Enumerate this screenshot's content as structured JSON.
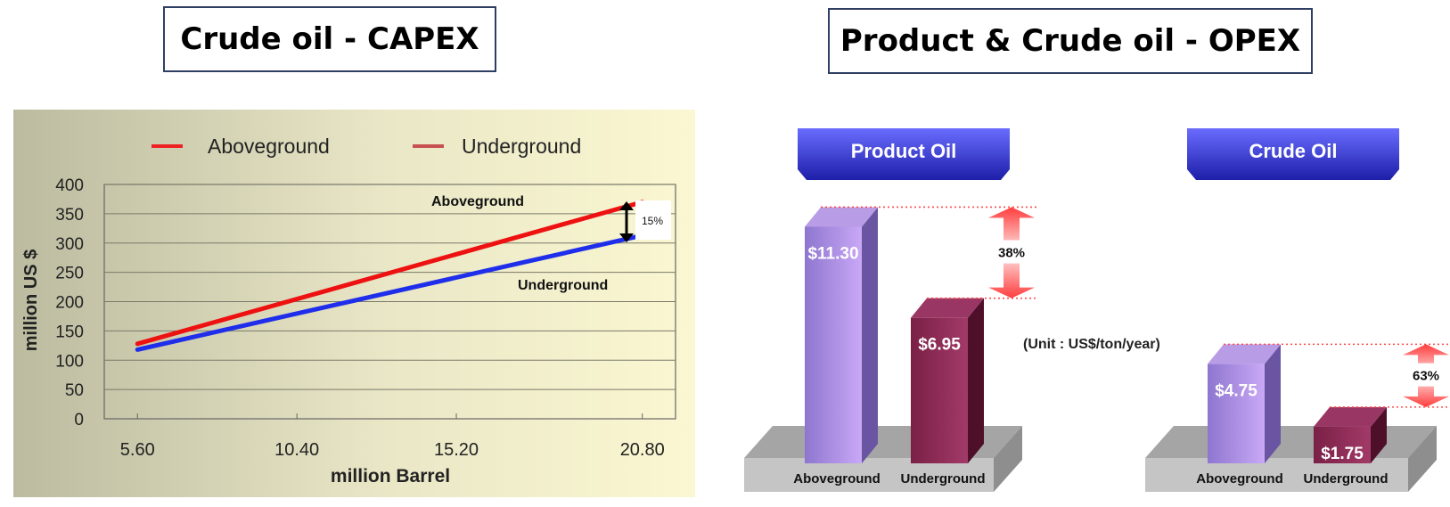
{
  "titles": {
    "left": "Crude oil - CAPEX",
    "right": "Product & Crude oil - OPEX"
  },
  "chart_data": [
    {
      "type": "line",
      "legend": [
        {
          "name": "Aboveground",
          "color": "#ee2222"
        },
        {
          "name": "Underground",
          "color": "#c85050"
        }
      ],
      "legend_placement": "top",
      "x": [
        "5.60",
        "10.40",
        "15.20",
        "20.80"
      ],
      "series": [
        {
          "name": "Aboveground",
          "color": "#ee1111",
          "points": [
            [
              5.6,
              128
            ],
            [
              20.8,
              370
            ]
          ]
        },
        {
          "name": "Underground",
          "color": "#1f2eea",
          "points": [
            [
              5.6,
              118
            ],
            [
              20.8,
              313
            ]
          ]
        }
      ],
      "annotations": {
        "aboveground": "Aboveground",
        "underground": "Underground",
        "difference": "15%"
      },
      "xlabel": "million Barrel",
      "ylabel": "million US $",
      "xlim": [
        4.6,
        21.8
      ],
      "ylim": [
        0,
        400
      ],
      "yticks": [
        "0",
        "50",
        "100",
        "150",
        "200",
        "250",
        "300",
        "350",
        "400"
      ],
      "grid": true
    },
    {
      "type": "bar",
      "header": "Product Oil",
      "categories": [
        "Aboveground",
        "Underground"
      ],
      "values": [
        11.3,
        6.95
      ],
      "value_labels": [
        "$11.30",
        "$6.95"
      ],
      "colors": [
        "#a78bd8",
        "#8a2a55"
      ],
      "difference_label": "38%"
    },
    {
      "type": "bar",
      "header": "Crude Oil",
      "categories": [
        "Aboveground",
        "Underground"
      ],
      "values": [
        4.75,
        1.75
      ],
      "value_labels": [
        "$4.75",
        "$1.75"
      ],
      "colors": [
        "#a78bd8",
        "#8a2a55"
      ],
      "difference_label": "63%"
    }
  ],
  "unit_note": "(Unit : US$/ton/year)"
}
